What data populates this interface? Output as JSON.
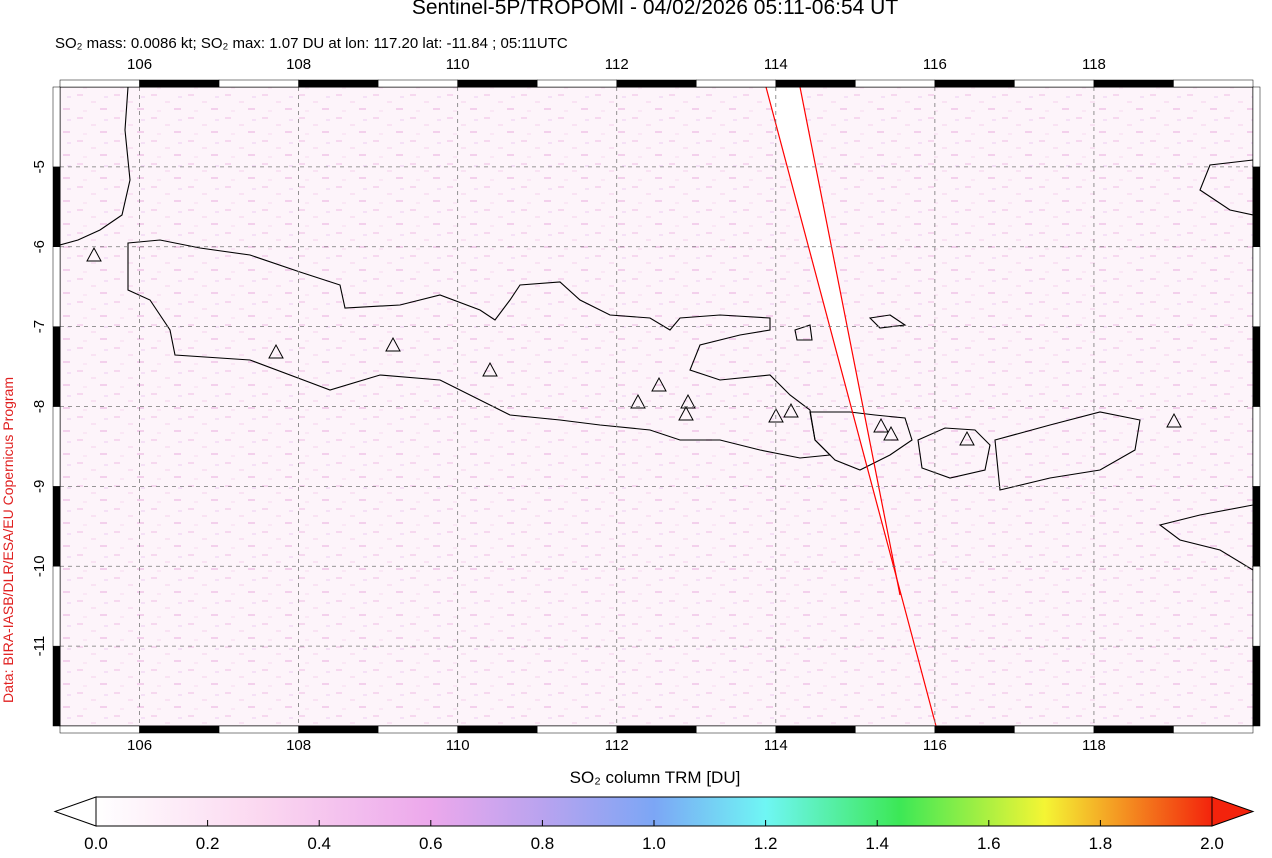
{
  "title": "Sentinel-5P/TROPOMI - 04/02/2026 05:11-06:54 UT",
  "subtitle": "SO₂ mass: 0.0086 kt; SO₂ max: 1.07 DU at lon: 117.20 lat: -11.84 ; 05:11UTC",
  "credit": "Data: BIRA-IASB/DLR/ESA/EU Copernicus Program",
  "map": {
    "xlim": [
      105,
      120
    ],
    "ylim": [
      -12,
      -4
    ],
    "xticks": [
      106,
      108,
      110,
      112,
      114,
      116,
      118
    ],
    "yticks": [
      -5,
      -6,
      -7,
      -8,
      -9,
      -10,
      -11
    ],
    "grid": true
  },
  "colorbar": {
    "label": "SO₂ column TRM [DU]",
    "lim": [
      0,
      2
    ],
    "ticks": [
      {
        "value": 0,
        "label": "0.0"
      },
      {
        "value": 0.2,
        "label": "0.2"
      },
      {
        "value": 0.4,
        "label": "0.4"
      },
      {
        "value": 0.6,
        "label": "0.6"
      },
      {
        "value": 0.8,
        "label": "0.8"
      },
      {
        "value": 1,
        "label": "1.0"
      },
      {
        "value": 1.2,
        "label": "1.2"
      },
      {
        "value": 1.4,
        "label": "1.4"
      },
      {
        "value": 1.6,
        "label": "1.6"
      },
      {
        "value": 1.8,
        "label": "1.8"
      },
      {
        "value": 2,
        "label": "2.0"
      }
    ]
  }
}
